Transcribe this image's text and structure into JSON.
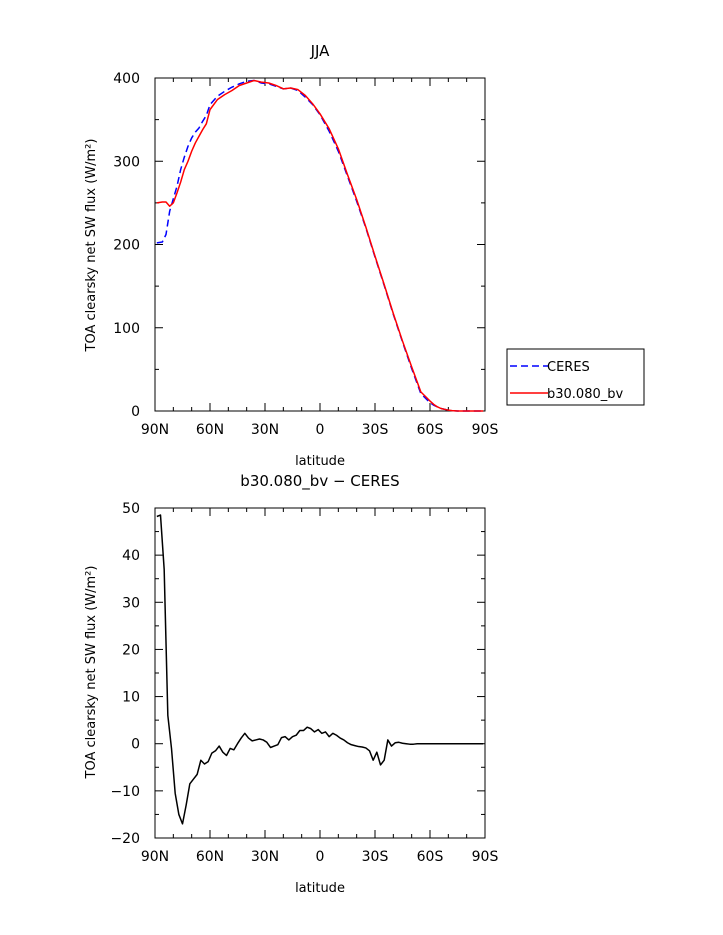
{
  "chart_data": [
    {
      "type": "line",
      "title": "JJA",
      "xlabel": "latitude",
      "ylabel": "TOA clearsky net SW flux (W/m²)",
      "xlim": [
        90,
        -90
      ],
      "ylim": [
        0,
        400
      ],
      "x_ticks": [
        90,
        60,
        30,
        0,
        -30,
        -60,
        -90
      ],
      "x_tick_labels": [
        "90N",
        "60N",
        "30N",
        "0",
        "30S",
        "60S",
        "90S"
      ],
      "y_ticks": [
        0,
        100,
        200,
        300,
        400
      ],
      "y_tick_labels": [
        "0",
        "100",
        "200",
        "300",
        "400"
      ],
      "legend": "right",
      "series": [
        {
          "name": "CERES",
          "color": "#0000ff",
          "dash": "dashed",
          "x": [
            89,
            86,
            84,
            82,
            80,
            78,
            76,
            74,
            72,
            70,
            68,
            66,
            64,
            62,
            60,
            56,
            52,
            48,
            44,
            40,
            36,
            32,
            28,
            24,
            20,
            16,
            12,
            8,
            4,
            0,
            -5,
            -10,
            -15,
            -20,
            -25,
            -30,
            -35,
            -40,
            -45,
            -50,
            -55,
            -60,
            -62,
            -64,
            -66,
            -68,
            -70,
            -72,
            -75,
            -78,
            -82,
            -86,
            -89
          ],
          "y": [
            202,
            203,
            212,
            240,
            255,
            270,
            290,
            305,
            318,
            328,
            335,
            340,
            348,
            355,
            368,
            378,
            384,
            389,
            393,
            396,
            397,
            394,
            393,
            390,
            387,
            388,
            385,
            377,
            368,
            356,
            336,
            312,
            282,
            252,
            220,
            185,
            151,
            116,
            83,
            51,
            21,
            10,
            7,
            5,
            3,
            2,
            1,
            0.5,
            0,
            0,
            0,
            0,
            0
          ]
        },
        {
          "name": "b30.080_bv",
          "color": "#ff0000",
          "dash": "solid",
          "x": [
            89,
            86,
            84,
            82,
            80,
            78,
            76,
            74,
            72,
            70,
            68,
            66,
            64,
            62,
            60,
            56,
            52,
            48,
            44,
            40,
            36,
            32,
            28,
            24,
            20,
            16,
            12,
            8,
            4,
            0,
            -5,
            -10,
            -15,
            -20,
            -25,
            -30,
            -35,
            -40,
            -45,
            -50,
            -55,
            -60,
            -62,
            -64,
            -66,
            -68,
            -70,
            -72,
            -75,
            -78,
            -82,
            -86,
            -89
          ],
          "y": [
            250,
            251,
            251,
            246,
            250,
            262,
            275,
            290,
            300,
            312,
            322,
            330,
            338,
            345,
            362,
            374,
            380,
            385,
            391,
            394,
            397,
            395,
            394,
            391,
            387,
            388,
            386,
            379,
            369,
            357,
            339,
            315,
            284,
            254,
            221,
            186,
            152,
            117,
            84,
            53,
            23,
            12,
            8,
            5,
            3,
            2,
            1,
            0.5,
            0,
            0,
            0,
            0,
            0
          ]
        }
      ]
    },
    {
      "type": "line",
      "title": "b30.080_bv − CERES",
      "xlabel": "latitude",
      "ylabel": "TOA clearsky net SW flux (W/m²)",
      "xlim": [
        90,
        -90
      ],
      "ylim": [
        -20,
        50
      ],
      "x_ticks": [
        90,
        60,
        30,
        0,
        -30,
        -60,
        -90
      ],
      "x_tick_labels": [
        "90N",
        "60N",
        "30N",
        "0",
        "30S",
        "60S",
        "90S"
      ],
      "y_ticks": [
        -20,
        -10,
        0,
        10,
        20,
        30,
        40,
        50
      ],
      "y_tick_labels": [
        "−20",
        "−10",
        "0",
        "10",
        "20",
        "30",
        "40",
        "50"
      ],
      "series": [
        {
          "name": "",
          "color": "#000000",
          "dash": "solid",
          "x": [
            89,
            87,
            85,
            83,
            81,
            79,
            77,
            75,
            73,
            71,
            69,
            67,
            65,
            63,
            61,
            59,
            57,
            55,
            53,
            51,
            49,
            47,
            45,
            43,
            41,
            39,
            37,
            35,
            33,
            31,
            29,
            27,
            25,
            23,
            21,
            19,
            17,
            15,
            13,
            11,
            9,
            7,
            5,
            3,
            1,
            -1,
            -3,
            -5,
            -7,
            -9,
            -11,
            -13,
            -15,
            -17,
            -19,
            -21,
            -23,
            -25,
            -27,
            -29,
            -31,
            -33,
            -35,
            -37,
            -39,
            -41,
            -43,
            -45,
            -47,
            -49,
            -51,
            -53,
            -55,
            -57,
            -59,
            -61,
            -63,
            -65,
            -67,
            -69,
            -71,
            -73,
            -75,
            -77,
            -79,
            -81,
            -83,
            -85,
            -87,
            -89
          ],
          "y": [
            48.2,
            48.5,
            37,
            6,
            -1,
            -10.5,
            -15,
            -17,
            -13,
            -8.5,
            -7.5,
            -6.5,
            -3.5,
            -4.3,
            -3.8,
            -2,
            -1.5,
            -0.5,
            -1.8,
            -2.5,
            -1,
            -1.3,
            0,
            1.2,
            2.2,
            1.2,
            0.6,
            0.8,
            1,
            0.8,
            0.3,
            -0.8,
            -0.5,
            -0.2,
            1.3,
            1.5,
            0.8,
            1.5,
            1.8,
            2.8,
            2.8,
            3.5,
            3.2,
            2.5,
            3,
            2.2,
            2.5,
            1.5,
            2.2,
            1.8,
            1.2,
            0.8,
            0.2,
            -0.2,
            -0.4,
            -0.6,
            -0.7,
            -0.9,
            -1.5,
            -3.5,
            -1.8,
            -4.5,
            -3.5,
            0.8,
            -0.5,
            0.2,
            0.3,
            0.1,
            0,
            -0.1,
            -0.1,
            0,
            0,
            0,
            0,
            0,
            0,
            0,
            0,
            0,
            0,
            0,
            0,
            0,
            0,
            0,
            0,
            0,
            0,
            0
          ]
        }
      ]
    }
  ]
}
